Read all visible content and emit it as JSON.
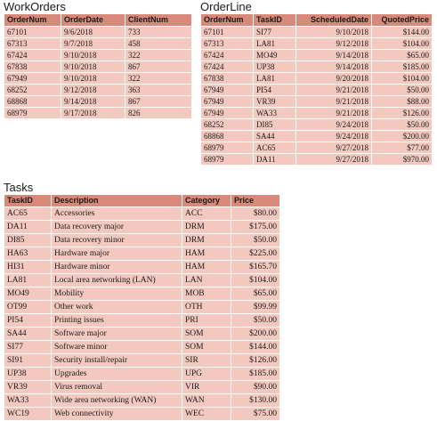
{
  "workorders": {
    "title": "WorkOrders",
    "columns": [
      "OrderNum",
      "OrderDate",
      "ClientNum"
    ],
    "rows": [
      [
        "67101",
        "9/6/2018",
        "733"
      ],
      [
        "67313",
        "9/7/2018",
        "458"
      ],
      [
        "67424",
        "9/10/2018",
        "322"
      ],
      [
        "67838",
        "9/10/2018",
        "867"
      ],
      [
        "67949",
        "9/10/2018",
        "322"
      ],
      [
        "68252",
        "9/12/2018",
        "363"
      ],
      [
        "68868",
        "9/14/2018",
        "867"
      ],
      [
        "68979",
        "9/17/2018",
        "826"
      ]
    ]
  },
  "orderline": {
    "title": "OrderLine",
    "columns": [
      "OrderNum",
      "TaskID",
      "ScheduledDate",
      "QuotedPrice"
    ],
    "rows": [
      [
        "67101",
        "SI77",
        "9/10/2018",
        "$144.00"
      ],
      [
        "67313",
        "LA81",
        "9/12/2018",
        "$104.00"
      ],
      [
        "67424",
        "MO49",
        "9/14/2018",
        "$65.00"
      ],
      [
        "67424",
        "UP38",
        "9/14/2018",
        "$185.00"
      ],
      [
        "67838",
        "LA81",
        "9/20/2018",
        "$104.00"
      ],
      [
        "67949",
        "PI54",
        "9/21/2018",
        "$50.00"
      ],
      [
        "67949",
        "VR39",
        "9/21/2018",
        "$88.00"
      ],
      [
        "67949",
        "WA33",
        "9/21/2018",
        "$126.00"
      ],
      [
        "68252",
        "DI85",
        "9/24/2018",
        "$50.00"
      ],
      [
        "68868",
        "SA44",
        "9/24/2018",
        "$200.00"
      ],
      [
        "68979",
        "AC65",
        "9/27/2018",
        "$77.00"
      ],
      [
        "68979",
        "DA11",
        "9/27/2018",
        "$970.00"
      ]
    ]
  },
  "tasks": {
    "title": "Tasks",
    "columns": [
      "TaskID",
      "Description",
      "Category",
      "Price"
    ],
    "rows": [
      [
        "AC65",
        "Accessories",
        "ACC",
        "$80.00"
      ],
      [
        "DA11",
        "Data recovery major",
        "DRM",
        "$175.00"
      ],
      [
        "DI85",
        "Data recovery minor",
        "DRM",
        "$50.00"
      ],
      [
        "HA63",
        "Hardware major",
        "HAM",
        "$225.00"
      ],
      [
        "HI31",
        "Hardware minor",
        "HAM",
        "$165.70"
      ],
      [
        "LA81",
        "Local area networking (LAN)",
        "LAN",
        "$104.00"
      ],
      [
        "MO49",
        "Mobility",
        "MOB",
        "$65.00"
      ],
      [
        "OT99",
        "Other work",
        "OTH",
        "$99.99"
      ],
      [
        "PI54",
        "Printing issues",
        "PRI",
        "$50.00"
      ],
      [
        "SA44",
        "Software major",
        "SOM",
        "$200.00"
      ],
      [
        "SI77",
        "Software minor",
        "SOM",
        "$144.00"
      ],
      [
        "SI91",
        "Security install/repair",
        "SIR",
        "$126.00"
      ],
      [
        "UP38",
        "Upgrades",
        "UPG",
        "$185.00"
      ],
      [
        "VR39",
        "Virus removal",
        "VIR",
        "$90.00"
      ],
      [
        "WA33",
        "Wide area networking (WAN)",
        "WAN",
        "$130.00"
      ],
      [
        "WC19",
        "Web connectivity",
        "WEC",
        "$75.00"
      ]
    ]
  },
  "colors": {
    "header_fill": "#d9897a",
    "cell_fill": "#f3c9bf",
    "grid_line": "#ffffff"
  }
}
